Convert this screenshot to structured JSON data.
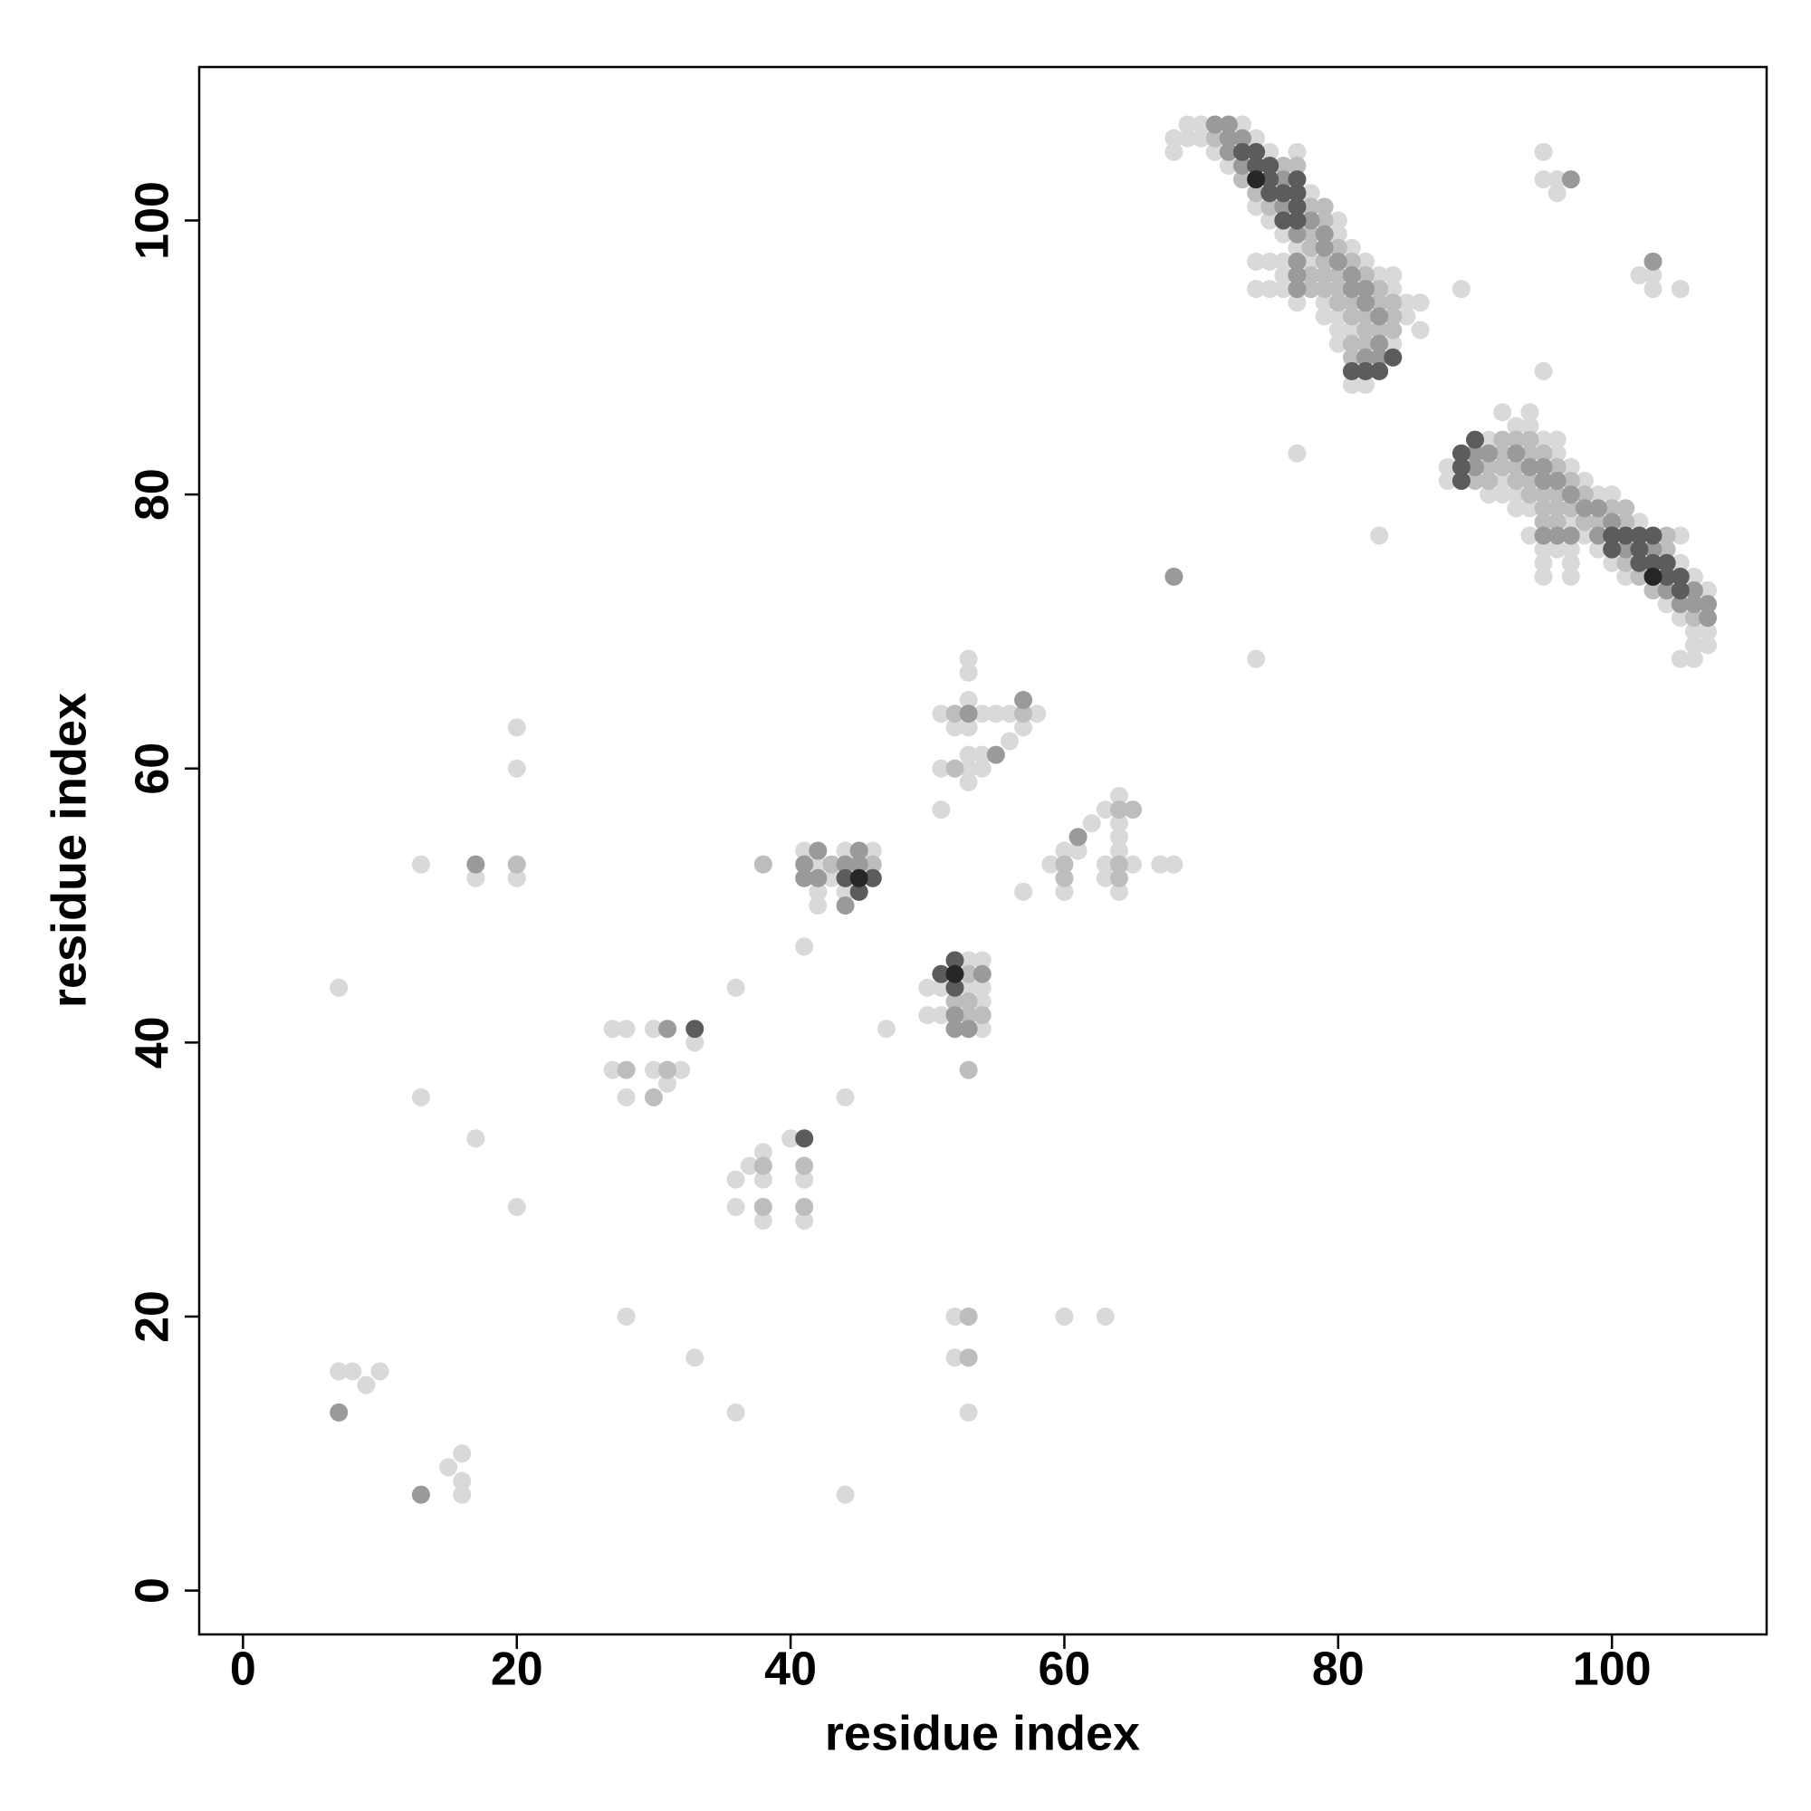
{
  "chart_data": {
    "type": "scatter",
    "x_label": "residue index",
    "y_label": "residue index",
    "xlim": [
      -3.2,
      111.3
    ],
    "ylim": [
      -3.2,
      111.2
    ],
    "xticks": [
      0,
      20,
      40,
      60,
      80,
      100
    ],
    "yticks": [
      0,
      20,
      40,
      60,
      80,
      100
    ],
    "grid": false,
    "series": [
      {
        "color": "#d9d9d9",
        "x": [
          7,
          8,
          9,
          10,
          15,
          16,
          16,
          16,
          13,
          13,
          17,
          17,
          20,
          20,
          20,
          20,
          7,
          28,
          33,
          36,
          44,
          36,
          27,
          28,
          30,
          33,
          27,
          30,
          32,
          31,
          28,
          36,
          37,
          38,
          38,
          36,
          38,
          40,
          41,
          41,
          41,
          44,
          47,
          41,
          44,
          46,
          42,
          43,
          42,
          44,
          42,
          53,
          54,
          50,
          51,
          53,
          54,
          54,
          50,
          51,
          54,
          52,
          52,
          53,
          60,
          63,
          53,
          53,
          53,
          51,
          54,
          55,
          56,
          58,
          52,
          53,
          57,
          56,
          53,
          54,
          51,
          53,
          54,
          53,
          51,
          57,
          64,
          63,
          62,
          60,
          61,
          64,
          59,
          63,
          65,
          67,
          68,
          63,
          60,
          64,
          64,
          64,
          74,
          77,
          83,
          89,
          95,
          95,
          95,
          96,
          96,
          102,
          103,
          103,
          105,
          69,
          70,
          73,
          68,
          69,
          70,
          74,
          68,
          71,
          75,
          77,
          72,
          78,
          74,
          75,
          80,
          76,
          80,
          77,
          81,
          74,
          75,
          76,
          78,
          82,
          76,
          83,
          84,
          74,
          75,
          76,
          84,
          77,
          79,
          85,
          86,
          79,
          80,
          85,
          80,
          81,
          86,
          80,
          84,
          81,
          82,
          107,
          107,
          107,
          106,
          106,
          106,
          106,
          105,
          105,
          105,
          105,
          104,
          102,
          101,
          100,
          100,
          99,
          99,
          98,
          98,
          97,
          97,
          97,
          97,
          97,
          96,
          96,
          96,
          95,
          95,
          95,
          95,
          94,
          94,
          94,
          94,
          93,
          93,
          93,
          92,
          92,
          92,
          91,
          91,
          88,
          88
        ],
        "values": [
          16,
          16,
          15,
          16,
          9,
          10,
          8,
          7,
          36,
          53,
          52,
          33,
          63,
          60,
          52,
          28,
          44,
          20,
          17,
          13,
          7,
          44,
          41,
          41,
          41,
          40,
          38,
          38,
          38,
          37,
          36,
          30,
          31,
          32,
          30,
          28,
          27,
          33,
          30,
          27,
          47,
          36,
          41,
          54,
          54,
          54,
          53,
          52,
          51,
          51,
          50,
          46,
          46,
          44,
          44,
          44,
          44,
          43,
          42,
          42,
          41,
          20,
          17,
          13,
          20,
          20,
          68,
          67,
          65,
          64,
          64,
          64,
          64,
          64,
          63,
          63,
          63,
          62,
          61,
          61,
          60,
          60,
          60,
          59,
          57,
          51,
          58,
          57,
          56,
          54,
          54,
          54,
          53,
          53,
          53,
          53,
          53,
          52,
          51,
          51,
          55,
          56,
          68,
          83,
          77,
          95,
          89,
          105,
          103,
          103,
          102,
          96,
          96,
          95,
          95,
          107,
          107,
          107,
          106,
          106,
          106,
          106,
          105,
          105,
          105,
          105,
          104,
          102,
          101,
          100,
          100,
          99,
          99,
          98,
          98,
          97,
          97,
          97,
          97,
          97,
          96,
          96,
          96,
          95,
          95,
          95,
          95,
          94,
          94,
          94,
          94,
          93,
          93,
          93,
          92,
          92,
          92,
          91,
          91,
          88,
          88,
          69,
          70,
          73,
          68,
          69,
          70,
          74,
          68,
          71,
          75,
          77,
          72,
          78,
          74,
          75,
          80,
          76,
          80,
          77,
          81,
          74,
          75,
          76,
          78,
          82,
          76,
          83,
          84,
          74,
          75,
          76,
          84,
          77,
          79,
          85,
          86,
          79,
          80,
          85,
          80,
          81,
          86,
          80,
          84,
          81,
          82
        ]
      },
      {
        "color": "#bdbdbd",
        "x": [
          28,
          31,
          30,
          38,
          38,
          41,
          41,
          38,
          43,
          46,
          53,
          52,
          53,
          53,
          54,
          53,
          53,
          53,
          52,
          57,
          52,
          64,
          65,
          60,
          64,
          60,
          64,
          20,
          71,
          76,
          77,
          73,
          74,
          75,
          78,
          79,
          79,
          78,
          78,
          80,
          79,
          81,
          78,
          79,
          80,
          82,
          78,
          79,
          80,
          83,
          80,
          81,
          83,
          84,
          81,
          82,
          84,
          82,
          83,
          84,
          81,
          82,
          81,
          106,
          104,
          104,
          103,
          102,
          101,
          101,
          101,
          100,
          99,
          98,
          98,
          97,
          97,
          96,
          96,
          96,
          96,
          95,
          95,
          95,
          95,
          94,
          94,
          94,
          94,
          93,
          93,
          93,
          92,
          92,
          92,
          91,
          91,
          90
        ],
        "values": [
          38,
          38,
          36,
          31,
          28,
          31,
          28,
          53,
          53,
          53,
          45,
          43,
          43,
          42,
          42,
          38,
          20,
          17,
          64,
          64,
          60,
          57,
          57,
          53,
          53,
          52,
          52,
          53,
          106,
          104,
          104,
          103,
          102,
          101,
          101,
          101,
          100,
          99,
          98,
          98,
          97,
          97,
          96,
          96,
          96,
          96,
          95,
          95,
          95,
          95,
          94,
          94,
          94,
          94,
          93,
          93,
          93,
          92,
          92,
          92,
          91,
          91,
          90,
          71,
          76,
          77,
          73,
          74,
          75,
          78,
          79,
          79,
          78,
          78,
          80,
          79,
          81,
          78,
          79,
          80,
          82,
          78,
          79,
          80,
          83,
          80,
          81,
          83,
          84,
          81,
          82,
          84,
          82,
          83,
          84,
          81,
          82,
          81
        ]
      },
      {
        "color": "#9a9a9a",
        "x": [
          7,
          13,
          17,
          31,
          42,
          45,
          41,
          44,
          45,
          41,
          42,
          44,
          54,
          52,
          52,
          53,
          53,
          57,
          55,
          61,
          68,
          97,
          103,
          71,
          72,
          72,
          73,
          72,
          73,
          76,
          76,
          78,
          77,
          79,
          79,
          77,
          80,
          77,
          81,
          77,
          81,
          82,
          82,
          83,
          83,
          82,
          83,
          107,
          107,
          106,
          106,
          105,
          104,
          103,
          101,
          100,
          99,
          99,
          98,
          97,
          97,
          96,
          96,
          95,
          95,
          95,
          94,
          93,
          91,
          90,
          90
        ],
        "values": [
          13,
          7,
          53,
          41,
          54,
          54,
          53,
          53,
          53,
          52,
          52,
          50,
          45,
          42,
          41,
          41,
          64,
          65,
          61,
          55,
          74,
          103,
          97,
          107,
          107,
          106,
          106,
          105,
          104,
          103,
          101,
          100,
          99,
          99,
          98,
          97,
          97,
          96,
          96,
          95,
          95,
          95,
          94,
          93,
          91,
          90,
          90,
          71,
          72,
          72,
          73,
          72,
          73,
          76,
          76,
          78,
          77,
          79,
          79,
          77,
          80,
          77,
          81,
          77,
          81,
          82,
          82,
          83,
          83,
          82,
          83
        ]
      },
      {
        "color": "#5c5c5c",
        "x": [
          33,
          41,
          44,
          46,
          45,
          52,
          51,
          52,
          73,
          74,
          74,
          75,
          75,
          77,
          75,
          76,
          77,
          77,
          76,
          77,
          84,
          81,
          82,
          83,
          105,
          105,
          104,
          104,
          103,
          103,
          102,
          102,
          102,
          101,
          100,
          100,
          90,
          89,
          89,
          89
        ],
        "values": [
          41,
          33,
          52,
          52,
          51,
          46,
          45,
          44,
          105,
          105,
          104,
          104,
          103,
          103,
          102,
          102,
          102,
          101,
          100,
          100,
          90,
          89,
          89,
          89,
          73,
          74,
          74,
          75,
          75,
          77,
          75,
          76,
          77,
          77,
          76,
          77,
          84,
          81,
          82,
          83
        ]
      },
      {
        "color": "#262626",
        "x": [
          45,
          52,
          74,
          103
        ],
        "values": [
          52,
          45,
          103,
          74
        ]
      }
    ]
  }
}
